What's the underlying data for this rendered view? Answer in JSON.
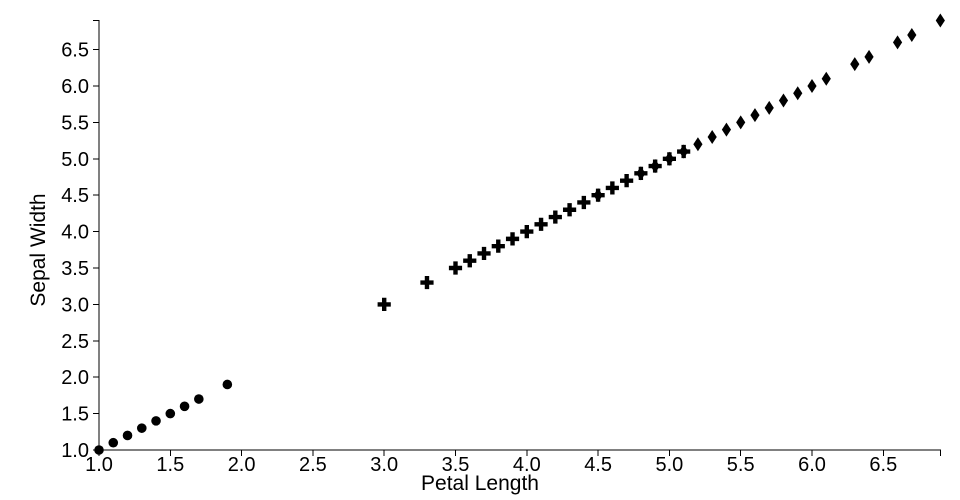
{
  "chart_data": {
    "type": "scatter",
    "title": "",
    "xlabel": "Petal Length",
    "ylabel": "Sepal Width",
    "xlim": [
      1.0,
      6.9
    ],
    "ylim": [
      1.0,
      6.9
    ],
    "x_ticks": [
      1.0,
      1.5,
      2.0,
      2.5,
      3.0,
      3.5,
      4.0,
      4.5,
      5.0,
      5.5,
      6.0,
      6.5
    ],
    "y_ticks": [
      1.0,
      1.5,
      2.0,
      2.5,
      3.0,
      3.5,
      4.0,
      4.5,
      5.0,
      5.5,
      6.0,
      6.5
    ],
    "tick_label_format": "one_decimal",
    "grid": false,
    "legend_position": "none",
    "background_color": "#ffffff",
    "axis_color": "#000000",
    "text_color": "#000000",
    "marker_color": "#000000",
    "series": [
      {
        "name": "circle-series",
        "marker": "circle",
        "x": [
          1.0,
          1.1,
          1.2,
          1.3,
          1.4,
          1.5,
          1.6,
          1.7,
          1.9
        ],
        "y": [
          1.0,
          1.1,
          1.2,
          1.3,
          1.4,
          1.5,
          1.6,
          1.7,
          1.9
        ]
      },
      {
        "name": "plus-series",
        "marker": "plus",
        "x": [
          3.0,
          3.3,
          3.5,
          3.6,
          3.7,
          3.8,
          3.9,
          4.0,
          4.1,
          4.2,
          4.3,
          4.4,
          4.5,
          4.6,
          4.7,
          4.8,
          4.9,
          5.0,
          5.1
        ],
        "y": [
          3.0,
          3.3,
          3.5,
          3.6,
          3.7,
          3.8,
          3.9,
          4.0,
          4.1,
          4.2,
          4.3,
          4.4,
          4.5,
          4.6,
          4.7,
          4.8,
          4.9,
          5.0,
          5.1
        ]
      },
      {
        "name": "diamond-series",
        "marker": "diamond",
        "x": [
          4.5,
          4.8,
          4.9,
          5.0,
          5.1,
          5.2,
          5.3,
          5.4,
          5.5,
          5.6,
          5.7,
          5.8,
          5.9,
          6.0,
          6.1,
          6.3,
          6.4,
          6.6,
          6.7,
          6.9
        ],
        "y": [
          4.5,
          4.8,
          4.9,
          5.0,
          5.1,
          5.2,
          5.3,
          5.4,
          5.5,
          5.6,
          5.7,
          5.8,
          5.9,
          6.0,
          6.1,
          6.3,
          6.4,
          6.6,
          6.7,
          6.9
        ]
      }
    ]
  }
}
